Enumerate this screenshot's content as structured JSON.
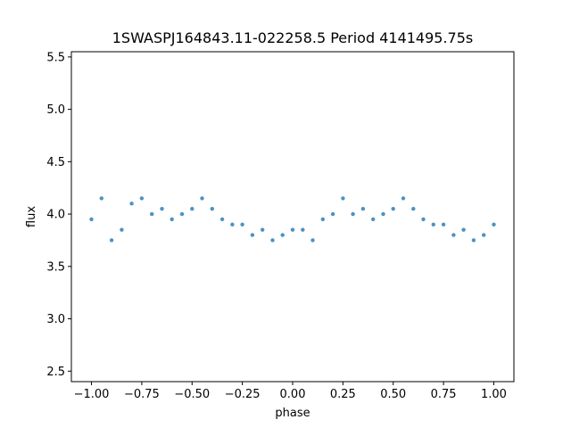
{
  "chart_data": {
    "type": "scatter",
    "title": "1SWASPJ164843.11-022258.5 Period 4141495.75s",
    "xlabel": "phase",
    "ylabel": "flux",
    "xlim": [
      -1.1,
      1.1
    ],
    "ylim": [
      2.4,
      5.55
    ],
    "x_ticks": [
      -1.0,
      -0.75,
      -0.5,
      -0.25,
      0.0,
      0.25,
      0.5,
      0.75,
      1.0
    ],
    "x_tick_labels": [
      "−1.00",
      "−0.75",
      "−0.50",
      "−0.25",
      "0.00",
      "0.25",
      "0.50",
      "0.75",
      "1.00"
    ],
    "y_ticks": [
      2.5,
      3.0,
      3.5,
      4.0,
      4.5,
      5.0,
      5.5
    ],
    "y_tick_labels": [
      "2.5",
      "3.0",
      "3.5",
      "4.0",
      "4.5",
      "5.0",
      "5.5"
    ],
    "grid": false,
    "marker_color": "#1f77b4",
    "series": [
      {
        "name": "",
        "x": [
          -1.0,
          -0.95,
          -0.9,
          -0.85,
          -0.8,
          -0.75,
          -0.7,
          -0.65,
          -0.6,
          -0.55,
          -0.5,
          -0.45,
          -0.4,
          -0.35,
          -0.3,
          -0.25,
          -0.2,
          -0.15,
          -0.1,
          -0.05,
          0.0,
          0.05,
          0.1,
          0.15,
          0.2,
          0.25,
          0.3,
          0.35,
          0.4,
          0.45,
          0.5,
          0.55,
          0.6,
          0.65,
          0.7,
          0.75,
          0.8,
          0.85,
          0.9,
          0.95,
          1.0
        ],
        "y": [
          3.95,
          4.15,
          3.75,
          3.85,
          4.1,
          4.15,
          4.0,
          4.05,
          3.95,
          4.0,
          4.05,
          4.15,
          4.05,
          3.95,
          3.9,
          3.9,
          3.8,
          3.85,
          3.75,
          3.8,
          3.85,
          3.85,
          3.75,
          3.95,
          4.0,
          4.15,
          4.0,
          4.05,
          3.95,
          4.0,
          4.05,
          4.15,
          4.05,
          3.95,
          3.9,
          3.9,
          3.8,
          3.85,
          3.75,
          3.8,
          3.9
        ]
      }
    ]
  }
}
